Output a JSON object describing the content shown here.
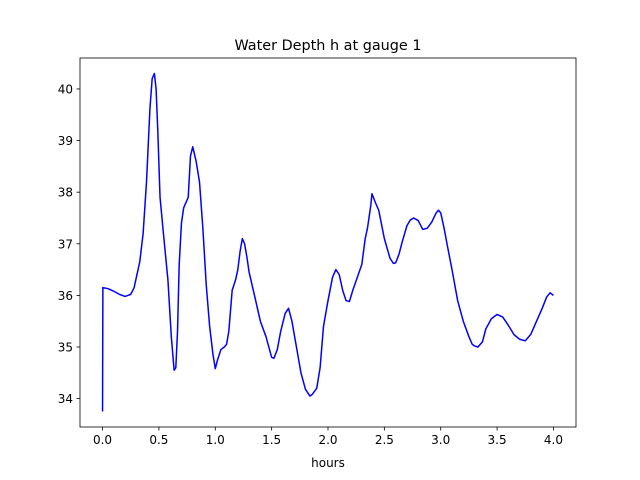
{
  "chart_data": {
    "type": "line",
    "title": "Water Depth h at gauge 1",
    "xlabel": "hours",
    "ylabel": "",
    "xlim": [
      -0.2,
      4.2
    ],
    "ylim": [
      33.45,
      40.6
    ],
    "xticks": [
      0.0,
      0.5,
      1.0,
      1.5,
      2.0,
      2.5,
      3.0,
      3.5,
      4.0
    ],
    "xtick_labels": [
      "0.0",
      "0.5",
      "1.0",
      "1.5",
      "2.0",
      "2.5",
      "3.0",
      "3.5",
      "4.0"
    ],
    "yticks": [
      34,
      35,
      36,
      37,
      38,
      39,
      40
    ],
    "ytick_labels": [
      "34",
      "35",
      "36",
      "37",
      "38",
      "39",
      "40"
    ],
    "grid": false,
    "series": [
      {
        "color": "#0000ff",
        "x": [
          0.0,
          0.003,
          0.05,
          0.1,
          0.15,
          0.2,
          0.25,
          0.28,
          0.3,
          0.33,
          0.36,
          0.39,
          0.42,
          0.44,
          0.46,
          0.475,
          0.49,
          0.51,
          0.54,
          0.58,
          0.61,
          0.635,
          0.65,
          0.665,
          0.68,
          0.7,
          0.72,
          0.76,
          0.78,
          0.8,
          0.83,
          0.86,
          0.89,
          0.92,
          0.95,
          0.98,
          1.0,
          1.02,
          1.05,
          1.08,
          1.1,
          1.12,
          1.15,
          1.18,
          1.2,
          1.22,
          1.24,
          1.26,
          1.28,
          1.3,
          1.35,
          1.4,
          1.45,
          1.5,
          1.52,
          1.55,
          1.58,
          1.62,
          1.65,
          1.68,
          1.72,
          1.76,
          1.8,
          1.84,
          1.86,
          1.9,
          1.93,
          1.96,
          2.0,
          2.04,
          2.07,
          2.1,
          2.13,
          2.16,
          2.19,
          2.22,
          2.26,
          2.3,
          2.33,
          2.35,
          2.38,
          2.39,
          2.42,
          2.45,
          2.5,
          2.55,
          2.58,
          2.6,
          2.63,
          2.66,
          2.7,
          2.73,
          2.76,
          2.8,
          2.84,
          2.88,
          2.92,
          2.96,
          2.98,
          3.0,
          3.03,
          3.06,
          3.1,
          3.15,
          3.2,
          3.25,
          3.28,
          3.3,
          3.33,
          3.37,
          3.4,
          3.45,
          3.5,
          3.55,
          3.6,
          3.65,
          3.7,
          3.75,
          3.8,
          3.85,
          3.9,
          3.94,
          3.97,
          4.0
        ],
        "y": [
          33.75,
          36.15,
          36.13,
          36.08,
          36.02,
          35.98,
          36.02,
          36.15,
          36.35,
          36.65,
          37.2,
          38.2,
          39.6,
          40.2,
          40.3,
          40.0,
          39.2,
          37.9,
          37.2,
          36.3,
          35.2,
          34.55,
          34.6,
          35.3,
          36.6,
          37.4,
          37.7,
          37.9,
          38.7,
          38.88,
          38.6,
          38.2,
          37.3,
          36.2,
          35.4,
          34.85,
          34.58,
          34.75,
          34.95,
          35.0,
          35.05,
          35.3,
          36.1,
          36.3,
          36.5,
          36.85,
          37.1,
          37.0,
          36.75,
          36.45,
          35.98,
          35.5,
          35.2,
          34.8,
          34.78,
          34.95,
          35.3,
          35.65,
          35.75,
          35.5,
          35.0,
          34.5,
          34.18,
          34.05,
          34.08,
          34.2,
          34.6,
          35.4,
          35.9,
          36.35,
          36.5,
          36.4,
          36.1,
          35.9,
          35.88,
          36.1,
          36.35,
          36.6,
          37.1,
          37.3,
          37.75,
          37.97,
          37.8,
          37.65,
          37.1,
          36.72,
          36.62,
          36.63,
          36.8,
          37.05,
          37.35,
          37.46,
          37.5,
          37.45,
          37.28,
          37.3,
          37.42,
          37.6,
          37.65,
          37.6,
          37.3,
          36.95,
          36.5,
          35.9,
          35.5,
          35.2,
          35.05,
          35.02,
          35.0,
          35.1,
          35.35,
          35.55,
          35.63,
          35.58,
          35.42,
          35.24,
          35.15,
          35.12,
          35.25,
          35.5,
          35.75,
          35.97,
          36.05,
          36.0
        ]
      }
    ]
  }
}
